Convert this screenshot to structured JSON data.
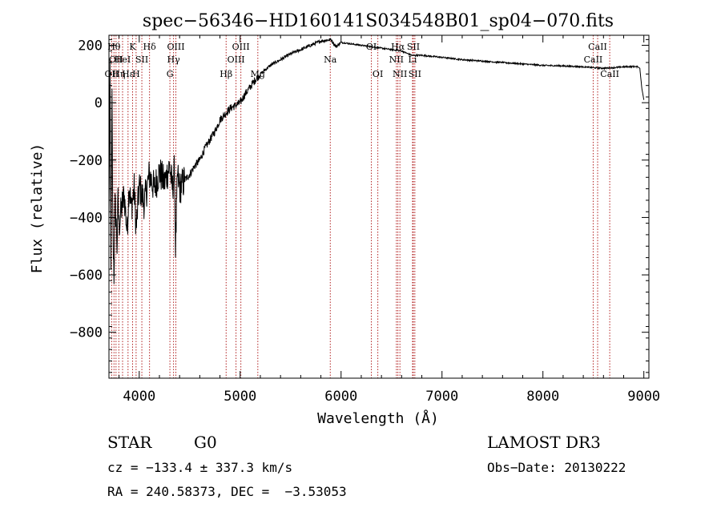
{
  "chart_data": {
    "type": "line",
    "title": "spec−56346−HD160141S034548B01_sp04−070.fits",
    "xlabel": "Wavelength (Å)",
    "ylabel": "Flux (relative)",
    "xlim": [
      3700,
      9050
    ],
    "ylim": [
      -960,
      235
    ],
    "xticks": [
      4000,
      5000,
      6000,
      7000,
      8000,
      9000
    ],
    "xtick_labels": [
      "4000",
      "5000",
      "6000",
      "7000",
      "8000",
      "9000"
    ],
    "yticks": [
      200,
      0,
      -200,
      -400,
      -600,
      -800
    ],
    "ytick_labels": [
      "200",
      "0",
      "−200",
      "−400",
      "−600",
      "−800"
    ],
    "grid": false,
    "series": [
      {
        "name": "flux",
        "x": [
          3700,
          3710,
          3720,
          3730,
          3740,
          3750,
          3760,
          3770,
          3780,
          3790,
          3800,
          3820,
          3850,
          3880,
          3900,
          3920,
          3950,
          3970,
          4000,
          4050,
          4100,
          4150,
          4200,
          4250,
          4300,
          4330,
          4350,
          4360,
          4380,
          4400,
          4450,
          4500,
          4550,
          4600,
          4650,
          4700,
          4750,
          4800,
          4850,
          4900,
          4950,
          5000,
          5050,
          5100,
          5150,
          5200,
          5300,
          5400,
          5500,
          5600,
          5700,
          5800,
          5900,
          5950,
          6000,
          6100,
          6200,
          6300,
          6400,
          6500,
          6600,
          6700,
          6800,
          7000,
          7200,
          7400,
          7600,
          7800,
          8000,
          8200,
          8400,
          8500,
          8600,
          8700,
          8800,
          8900,
          8940,
          8960,
          8980,
          9000
        ],
        "y": [
          -420,
          90,
          -540,
          10,
          -460,
          -600,
          -360,
          -400,
          -500,
          -340,
          -430,
          -380,
          -320,
          -450,
          -280,
          -370,
          -300,
          -440,
          -290,
          -350,
          -250,
          -300,
          -240,
          -280,
          -220,
          -300,
          -230,
          -500,
          -250,
          -300,
          -270,
          -250,
          -220,
          -200,
          -160,
          -130,
          -100,
          -60,
          -40,
          -20,
          -10,
          0,
          30,
          55,
          80,
          100,
          130,
          150,
          170,
          185,
          200,
          215,
          220,
          195,
          210,
          205,
          200,
          195,
          190,
          185,
          180,
          165,
          165,
          158,
          150,
          145,
          140,
          135,
          130,
          128,
          125,
          122,
          120,
          122,
          125,
          126,
          125,
          120,
          50,
          10
        ]
      }
    ],
    "lines": [
      {
        "x": 3727,
        "row": 3,
        "label": "OII"
      },
      {
        "x": 3750,
        "row": 1,
        "label": "Hθ"
      },
      {
        "x": 3770,
        "row": 2,
        "label": "OII"
      },
      {
        "x": 3798,
        "row": 3,
        "label": "Hη"
      },
      {
        "x": 3835,
        "row": 2,
        "label": "HeI"
      },
      {
        "x": 3889,
        "row": 3,
        "label": "Hε"
      },
      {
        "x": 3934,
        "row": 1,
        "label": "K"
      },
      {
        "x": 3969,
        "row": 3,
        "label": "H"
      },
      {
        "x": 4026,
        "row": 2,
        "label": "SII"
      },
      {
        "x": 4102,
        "row": 1,
        "label": "Hδ"
      },
      {
        "x": 4304,
        "row": 3,
        "label": "G"
      },
      {
        "x": 4340,
        "row": 2,
        "label": "Hγ"
      },
      {
        "x": 4363,
        "row": 1,
        "label": "OIII"
      },
      {
        "x": 4861,
        "row": 3,
        "label": "Hβ"
      },
      {
        "x": 4959,
        "row": 2,
        "label": "OIII"
      },
      {
        "x": 5007,
        "row": 1,
        "label": "OIII"
      },
      {
        "x": 5175,
        "row": 3,
        "label": "Mg"
      },
      {
        "x": 5893,
        "row": 2,
        "label": "Na"
      },
      {
        "x": 6300,
        "row": 1,
        "label": "OI"
      },
      {
        "x": 6364,
        "row": 3,
        "label": "OI"
      },
      {
        "x": 6548,
        "row": 2,
        "label": "NII"
      },
      {
        "x": 6563,
        "row": 1,
        "label": "Hα"
      },
      {
        "x": 6583,
        "row": 3,
        "label": "NII"
      },
      {
        "x": 6708,
        "row": 2,
        "label": "Li"
      },
      {
        "x": 6716,
        "row": 1,
        "label": "SII"
      },
      {
        "x": 6731,
        "row": 3,
        "label": "SII"
      },
      {
        "x": 8498,
        "row": 2,
        "label": "CaII"
      },
      {
        "x": 8542,
        "row": 1,
        "label": "CaII"
      },
      {
        "x": 8662,
        "row": 3,
        "label": "CaII"
      }
    ]
  },
  "info": {
    "class_label": "STAR",
    "subclass": "G0",
    "survey": "LAMOST DR3",
    "velocity": "cz = −133.4 ± 337.3 km/s",
    "obs_date": "Obs−Date: 20130222",
    "coords": "RA = 240.58373, DEC =  −3.53053"
  }
}
